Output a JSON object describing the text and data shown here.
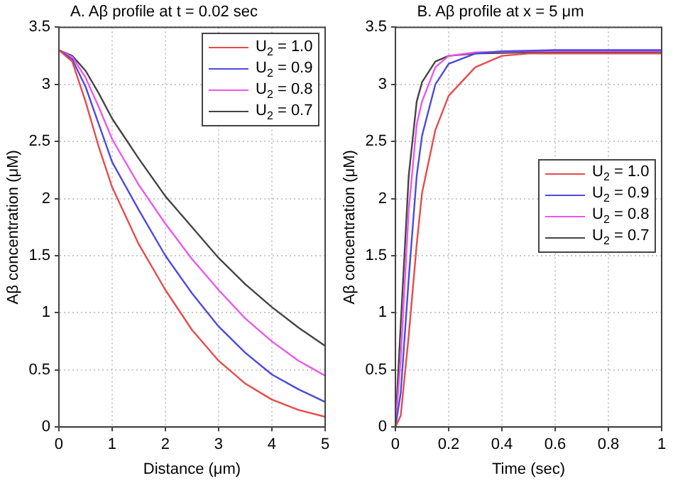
{
  "chart_data": [
    {
      "type": "line",
      "title": "A. Aβ profile at t = 0.02 sec",
      "xlabel": "Distance (μm)",
      "ylabel": "Aβ concentration (μM)",
      "x": [
        0,
        0.25,
        0.5,
        0.75,
        1,
        1.5,
        2,
        2.5,
        3,
        3.5,
        4,
        4.5,
        5
      ],
      "series": [
        {
          "name": "U$_{2}$ = 1.0",
          "color": "#e84a4a",
          "values": [
            3.3,
            3.2,
            2.85,
            2.45,
            2.1,
            1.6,
            1.2,
            0.85,
            0.58,
            0.38,
            0.24,
            0.15,
            0.09
          ]
        },
        {
          "name": "U$_{2}$ = 0.9",
          "color": "#4a4ae0",
          "values": [
            3.3,
            3.22,
            2.98,
            2.65,
            2.32,
            1.9,
            1.5,
            1.17,
            0.88,
            0.65,
            0.46,
            0.33,
            0.22
          ]
        },
        {
          "name": "U$_{2}$ = 0.8",
          "color": "#ee55ee",
          "values": [
            3.3,
            3.24,
            3.06,
            2.8,
            2.52,
            2.12,
            1.78,
            1.47,
            1.2,
            0.95,
            0.75,
            0.58,
            0.45
          ]
        },
        {
          "name": "U$_{2}$ = 0.7",
          "color": "#444444",
          "values": [
            3.3,
            3.25,
            3.12,
            2.92,
            2.7,
            2.35,
            2.02,
            1.75,
            1.48,
            1.25,
            1.05,
            0.87,
            0.71
          ]
        }
      ],
      "xlim": [
        0,
        5
      ],
      "xticks": [
        0,
        1,
        2,
        3,
        4,
        5
      ],
      "ylim": [
        0,
        3.5
      ],
      "yticks": [
        0,
        0.5,
        1,
        1.5,
        2,
        2.5,
        3,
        3.5
      ],
      "grid": true,
      "legend": "top right",
      "marker": "none",
      "line_style": "solid"
    },
    {
      "type": "line",
      "title": "B. Aβ profile at x = 5 μm",
      "xlabel": "Time (sec)",
      "ylabel": "Aβ concentration (μM)",
      "series": [
        {
          "name": "U$_{2}$ = 1.0",
          "color": "#e84a4a",
          "x": [
            0,
            0.02,
            0.05,
            0.08,
            0.1,
            0.15,
            0.2,
            0.3,
            0.4,
            0.5,
            0.6,
            1
          ],
          "values": [
            0,
            0.1,
            0.8,
            1.6,
            2.05,
            2.6,
            2.9,
            3.15,
            3.25,
            3.27,
            3.27,
            3.27
          ]
        },
        {
          "name": "U$_{2}$ = 0.9",
          "color": "#4a4ae0",
          "x": [
            0,
            0.02,
            0.05,
            0.08,
            0.1,
            0.15,
            0.2,
            0.3,
            0.4,
            0.6,
            1
          ],
          "values": [
            0,
            0.3,
            1.3,
            2.2,
            2.55,
            3.0,
            3.18,
            3.27,
            3.29,
            3.3,
            3.3
          ]
        },
        {
          "name": "U$_{2}$ = 0.8",
          "color": "#ee55ee",
          "x": [
            0,
            0.02,
            0.05,
            0.08,
            0.1,
            0.15,
            0.2,
            0.3,
            0.5,
            1
          ],
          "values": [
            0,
            0.6,
            1.9,
            2.65,
            2.85,
            3.15,
            3.25,
            3.28,
            3.29,
            3.29
          ]
        },
        {
          "name": "U$_{2}$ = 0.7",
          "color": "#444444",
          "x": [
            0,
            0.02,
            0.05,
            0.08,
            0.1,
            0.15,
            0.2,
            0.3,
            0.5,
            1
          ],
          "values": [
            0,
            0.9,
            2.2,
            2.85,
            3.02,
            3.2,
            3.25,
            3.27,
            3.28,
            3.28
          ]
        }
      ],
      "xlim": [
        0,
        1
      ],
      "xticks": [
        0,
        0.2,
        0.4,
        0.6,
        0.8,
        1
      ],
      "ylim": [
        0,
        3.5
      ],
      "yticks": [
        0,
        0.5,
        1,
        1.5,
        2,
        2.5,
        3,
        3.5
      ],
      "grid": true,
      "legend": "right",
      "marker": "none",
      "line_style": "solid"
    }
  ]
}
